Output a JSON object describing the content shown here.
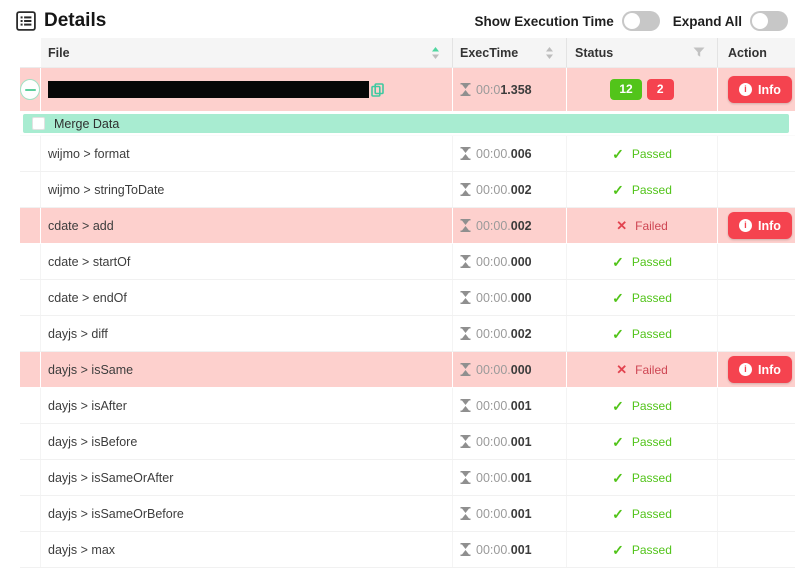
{
  "header": {
    "title": "Details",
    "show_execution_time_label": "Show Execution Time",
    "show_execution_time_on": false,
    "expand_all_label": "Expand All",
    "expand_all_on": false
  },
  "table": {
    "columns": {
      "file": "File",
      "exec_time": "ExecTime",
      "status": "Status",
      "action": "Action"
    },
    "sort": {
      "file_column_sorted": "ascending",
      "exec_time_column_sorted": "none"
    },
    "parent_row": {
      "file_redacted": true,
      "time_muted": "00:0",
      "time_strong": "1.358",
      "passed_count": 12,
      "failed_count": 2,
      "action_label": "Info"
    },
    "group_row": {
      "label": "Merge Data",
      "checked": false
    },
    "rows": [
      {
        "file": "wijmo > format",
        "time_muted": "00:00.",
        "time_strong": "006",
        "status": "Passed"
      },
      {
        "file": "wijmo > stringToDate",
        "time_muted": "00:00.",
        "time_strong": "002",
        "status": "Passed"
      },
      {
        "file": "cdate > add",
        "time_muted": "00:00.",
        "time_strong": "002",
        "status": "Failed"
      },
      {
        "file": "cdate > startOf",
        "time_muted": "00:00.",
        "time_strong": "000",
        "status": "Passed"
      },
      {
        "file": "cdate > endOf",
        "time_muted": "00:00.",
        "time_strong": "000",
        "status": "Passed"
      },
      {
        "file": "dayjs > diff",
        "time_muted": "00:00.",
        "time_strong": "002",
        "status": "Passed"
      },
      {
        "file": "dayjs > isSame",
        "time_muted": "00:00.",
        "time_strong": "000",
        "status": "Failed"
      },
      {
        "file": "dayjs > isAfter",
        "time_muted": "00:00.",
        "time_strong": "001",
        "status": "Passed"
      },
      {
        "file": "dayjs > isBefore",
        "time_muted": "00:00.",
        "time_strong": "001",
        "status": "Passed"
      },
      {
        "file": "dayjs > isSameOrAfter",
        "time_muted": "00:00.",
        "time_strong": "001",
        "status": "Passed"
      },
      {
        "file": "dayjs > isSameOrBefore",
        "time_muted": "00:00.",
        "time_strong": "001",
        "status": "Passed"
      },
      {
        "file": "dayjs > max",
        "time_muted": "00:00.",
        "time_strong": "001",
        "status": "Passed"
      }
    ],
    "info_label": "Info",
    "info_icon_glyph": "i"
  },
  "icons": {
    "check": "✓",
    "cross": "✕"
  },
  "colors": {
    "failed_row_bg": "#fdd0cd",
    "group_row_bg": "#a8ecd1",
    "badge_green": "#52c41a",
    "badge_red": "#f5434f",
    "passed_text": "#52c41a",
    "failed_text": "#ce4653",
    "sort_active": "#4fd6a0"
  }
}
